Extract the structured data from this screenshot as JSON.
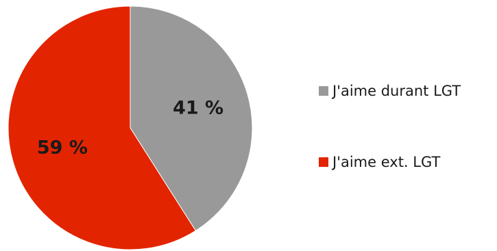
{
  "chart_data": {
    "type": "pie",
    "categories": [
      "J'aime durant LGT",
      "J'aime ext. LGT"
    ],
    "values": [
      41,
      59
    ],
    "labels": [
      "41 %",
      "59 %"
    ],
    "colors": [
      "#999999",
      "#e32400"
    ],
    "start_angle_deg": 0,
    "direction": "clockwise",
    "legend_position": "right"
  }
}
